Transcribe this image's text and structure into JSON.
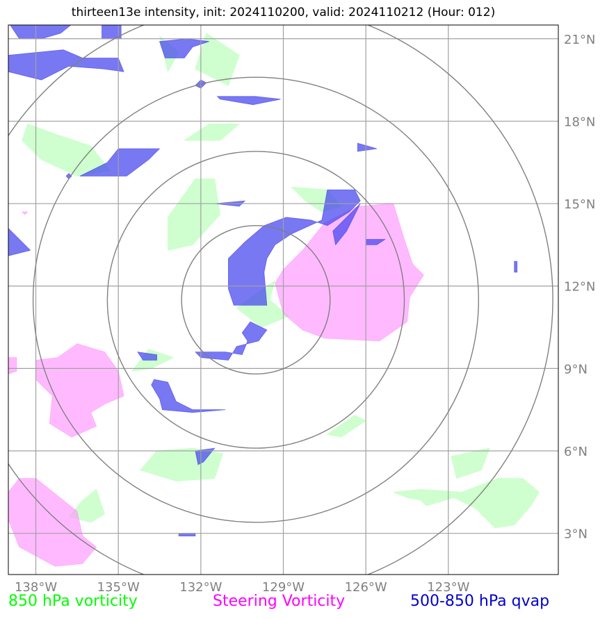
{
  "title": "thirteen13e intensity, init: 2024110200, valid: 2024110212 (Hour: 012)",
  "extent": {
    "lon": [
      -139.0,
      -119.0
    ],
    "lat": [
      1.5,
      21.5
    ]
  },
  "center": {
    "lon": -130.0,
    "lat": 11.5
  },
  "ring_radii_deg": [
    2.7,
    5.4,
    8.1,
    10.8
  ],
  "lon_ticks": [
    -138,
    -135,
    -132,
    -129,
    -126,
    -123
  ],
  "lon_labels": [
    "138°W",
    "135°W",
    "132°W",
    "129°W",
    "126°W",
    "123°W"
  ],
  "lat_ticks": [
    3,
    6,
    9,
    12,
    15,
    18,
    21
  ],
  "lat_labels": [
    "3°N",
    "6°N",
    "9°N",
    "12°N",
    "15°N",
    "18°N",
    "21°N"
  ],
  "legend": [
    {
      "label": "850 hPa vorticity",
      "color": "#00ff00"
    },
    {
      "label": "Steering Vorticity",
      "color": "#ff00ff"
    },
    {
      "label": "500-850 hPa qvap",
      "color": "#0000cc"
    }
  ],
  "colors": {
    "vort850": "#bfffbf",
    "steering": "#ff8cff",
    "qvap": "#4444ee",
    "grid": "#a0a0a0",
    "rings": "#808080"
  },
  "layers": {
    "vort850": [
      [
        [
          -131.8,
          21.2
        ],
        [
          -130.6,
          20.4
        ],
        [
          -131.0,
          19.3
        ],
        [
          -132.2,
          19.9
        ]
      ],
      [
        [
          -133.5,
          21.1
        ],
        [
          -132.8,
          20.5
        ],
        [
          -133.2,
          19.8
        ]
      ],
      [
        [
          -131.7,
          17.9
        ],
        [
          -130.6,
          17.9
        ],
        [
          -131.3,
          17.3
        ],
        [
          -132.6,
          17.3
        ]
      ],
      [
        [
          -138.3,
          17.9
        ],
        [
          -137.2,
          17.5
        ],
        [
          -136.0,
          17.1
        ],
        [
          -135.3,
          16.2
        ],
        [
          -136.5,
          16.0
        ],
        [
          -137.8,
          16.6
        ],
        [
          -138.5,
          17.3
        ]
      ],
      [
        [
          -131.5,
          15.9
        ],
        [
          -131.3,
          14.6
        ],
        [
          -132.3,
          13.5
        ],
        [
          -133.2,
          13.3
        ],
        [
          -133.2,
          14.5
        ],
        [
          -132.2,
          15.9
        ]
      ],
      [
        [
          -128.7,
          15.6
        ],
        [
          -127.4,
          15.5
        ],
        [
          -126.9,
          14.9
        ],
        [
          -127.6,
          14.7
        ],
        [
          -128.2,
          15.1
        ]
      ],
      [
        [
          -129.3,
          12.2
        ],
        [
          -129.5,
          11.5
        ],
        [
          -128.8,
          10.9
        ],
        [
          -129.8,
          10.5
        ],
        [
          -130.7,
          11.2
        ]
      ],
      [
        [
          -133.0,
          9.4
        ],
        [
          -133.8,
          9.0
        ],
        [
          -134.5,
          8.9
        ],
        [
          -133.9,
          9.7
        ]
      ],
      [
        [
          -126.0,
          7.1
        ],
        [
          -126.9,
          6.5
        ],
        [
          -127.4,
          6.6
        ],
        [
          -126.4,
          7.3
        ]
      ],
      [
        [
          -132.3,
          6.1
        ],
        [
          -131.2,
          5.9
        ],
        [
          -131.5,
          5.0
        ],
        [
          -132.9,
          4.9
        ],
        [
          -134.2,
          5.3
        ],
        [
          -133.6,
          6.0
        ]
      ],
      [
        [
          -135.8,
          4.6
        ],
        [
          -135.5,
          3.7
        ],
        [
          -136.0,
          3.4
        ],
        [
          -136.8,
          3.6
        ],
        [
          -136.3,
          4.2
        ]
      ],
      [
        [
          -120.0,
          4.0
        ],
        [
          -120.6,
          3.3
        ],
        [
          -121.3,
          3.2
        ],
        [
          -122.0,
          3.9
        ],
        [
          -122.8,
          4.3
        ],
        [
          -123.8,
          4.0
        ],
        [
          -124.0,
          4.2
        ],
        [
          -124.5,
          4.3
        ],
        [
          -125.0,
          4.5
        ],
        [
          -124.0,
          4.6
        ],
        [
          -122.5,
          4.5
        ],
        [
          -121.2,
          5.0
        ],
        [
          -120.3,
          5.0
        ],
        [
          -119.7,
          4.5
        ]
      ],
      [
        [
          -121.5,
          6.1
        ],
        [
          -121.8,
          5.3
        ],
        [
          -122.7,
          5.0
        ],
        [
          -122.9,
          5.8
        ]
      ]
    ],
    "steering": [
      [
        [
          -125.0,
          15.0
        ],
        [
          -126.3,
          14.9
        ],
        [
          -127.5,
          14.3
        ],
        [
          -128.3,
          13.3
        ],
        [
          -129.0,
          12.6
        ],
        [
          -129.3,
          12.1
        ],
        [
          -129.0,
          11.0
        ],
        [
          -128.3,
          10.4
        ],
        [
          -127.5,
          10.1
        ],
        [
          -125.5,
          10.0
        ],
        [
          -124.5,
          10.7
        ],
        [
          -124.4,
          11.6
        ],
        [
          -123.9,
          12.4
        ],
        [
          -124.3,
          12.8
        ],
        [
          -124.6,
          13.7
        ]
      ],
      [
        [
          -136.5,
          9.9
        ],
        [
          -135.5,
          9.6
        ],
        [
          -135.0,
          8.9
        ],
        [
          -134.8,
          8.0
        ],
        [
          -135.5,
          7.7
        ],
        [
          -136.0,
          7.4
        ],
        [
          -135.8,
          6.9
        ],
        [
          -136.7,
          6.5
        ],
        [
          -137.5,
          7.0
        ],
        [
          -137.4,
          8.0
        ],
        [
          -138.0,
          8.6
        ],
        [
          -138.0,
          9.3
        ],
        [
          -137.2,
          9.4
        ]
      ],
      [
        [
          -138.7,
          9.4
        ],
        [
          -138.7,
          8.9
        ],
        [
          -139.0,
          8.8
        ],
        [
          -139.0,
          9.4
        ]
      ],
      [
        [
          -138.0,
          5.0
        ],
        [
          -137.0,
          4.2
        ],
        [
          -136.5,
          3.8
        ],
        [
          -136.3,
          2.9
        ],
        [
          -135.8,
          2.5
        ],
        [
          -136.3,
          1.9
        ],
        [
          -137.3,
          1.8
        ],
        [
          -138.6,
          2.5
        ],
        [
          -139.0,
          3.5
        ],
        [
          -139.0,
          4.5
        ],
        [
          -138.6,
          5.0
        ]
      ],
      [
        [
          -138.3,
          14.7
        ],
        [
          -138.4,
          14.6
        ],
        [
          -138.5,
          14.7
        ]
      ]
    ],
    "qvap": [
      [
        [
          -139.0,
          21.6
        ],
        [
          -136.6,
          21.6
        ],
        [
          -137.1,
          21.2
        ],
        [
          -137.8,
          21.0
        ],
        [
          -138.6,
          21.0
        ]
      ],
      [
        [
          -135.6,
          21.6
        ],
        [
          -134.9,
          21.6
        ],
        [
          -134.9,
          21.0
        ],
        [
          -135.6,
          21.0
        ]
      ],
      [
        [
          -133.5,
          20.9
        ],
        [
          -132.5,
          21.0
        ],
        [
          -131.7,
          20.9
        ],
        [
          -132.3,
          20.7
        ],
        [
          -132.6,
          20.3
        ],
        [
          -133.3,
          20.3
        ]
      ],
      [
        [
          -139.0,
          20.4
        ],
        [
          -137.0,
          20.6
        ],
        [
          -136.3,
          20.3
        ],
        [
          -135.0,
          20.3
        ],
        [
          -134.8,
          19.8
        ],
        [
          -135.5,
          19.9
        ],
        [
          -136.8,
          20.0
        ],
        [
          -137.8,
          19.5
        ],
        [
          -139.0,
          19.8
        ]
      ],
      [
        [
          -132.0,
          19.5
        ],
        [
          -131.8,
          19.4
        ],
        [
          -132.0,
          19.2
        ],
        [
          -132.2,
          19.3
        ]
      ],
      [
        [
          -131.4,
          18.9
        ],
        [
          -130.0,
          18.9
        ],
        [
          -129.1,
          18.8
        ],
        [
          -130.1,
          18.6
        ],
        [
          -131.3,
          18.8
        ]
      ],
      [
        [
          -135.0,
          17.0
        ],
        [
          -133.5,
          17.0
        ],
        [
          -133.9,
          16.6
        ],
        [
          -134.7,
          16.0
        ],
        [
          -135.6,
          16.0
        ],
        [
          -136.4,
          16.0
        ],
        [
          -135.4,
          16.5
        ]
      ],
      [
        [
          -126.3,
          17.2
        ],
        [
          -125.6,
          17.0
        ],
        [
          -126.3,
          16.9
        ]
      ],
      [
        [
          -131.5,
          15.0
        ],
        [
          -130.4,
          15.1
        ],
        [
          -130.6,
          14.9
        ]
      ],
      [
        [
          -131.0,
          13.0
        ],
        [
          -130.4,
          13.6
        ],
        [
          -129.7,
          14.2
        ],
        [
          -128.9,
          14.5
        ],
        [
          -128.0,
          14.4
        ],
        [
          -127.4,
          14.2
        ],
        [
          -126.6,
          14.7
        ],
        [
          -126.2,
          15.1
        ],
        [
          -126.4,
          15.5
        ],
        [
          -127.4,
          15.5
        ],
        [
          -127.6,
          14.4
        ],
        [
          -128.7,
          13.9
        ],
        [
          -129.3,
          13.5
        ],
        [
          -129.6,
          13.0
        ],
        [
          -129.7,
          12.5
        ],
        [
          -129.6,
          11.3
        ],
        [
          -130.8,
          11.3
        ],
        [
          -131.0,
          11.9
        ]
      ],
      [
        [
          -126.2,
          15.0
        ],
        [
          -126.7,
          14.5
        ],
        [
          -127.2,
          14.0
        ],
        [
          -127.1,
          13.5
        ],
        [
          -126.7,
          14.0
        ]
      ],
      [
        [
          -126.0,
          13.7
        ],
        [
          -125.3,
          13.7
        ],
        [
          -125.6,
          13.5
        ],
        [
          -126.0,
          13.5
        ]
      ],
      [
        [
          -139.0,
          14.1
        ],
        [
          -138.2,
          13.3
        ],
        [
          -139.0,
          13.1
        ]
      ],
      [
        [
          -130.2,
          10.7
        ],
        [
          -129.6,
          10.4
        ],
        [
          -129.9,
          10.0
        ],
        [
          -130.7,
          9.8
        ],
        [
          -131.0,
          9.3
        ],
        [
          -132.0,
          9.4
        ],
        [
          -132.2,
          9.6
        ],
        [
          -131.1,
          9.6
        ],
        [
          -130.5,
          9.5
        ],
        [
          -130.3,
          10.0
        ],
        [
          -130.5,
          10.3
        ]
      ],
      [
        [
          -134.3,
          9.6
        ],
        [
          -133.6,
          9.5
        ],
        [
          -133.6,
          9.3
        ],
        [
          -134.1,
          9.3
        ]
      ],
      [
        [
          -133.7,
          8.6
        ],
        [
          -133.2,
          8.5
        ],
        [
          -132.9,
          7.8
        ],
        [
          -132.3,
          7.5
        ],
        [
          -131.1,
          7.5
        ],
        [
          -132.3,
          7.4
        ],
        [
          -133.4,
          7.5
        ],
        [
          -133.5,
          7.9
        ],
        [
          -133.8,
          8.4
        ]
      ],
      [
        [
          -132.2,
          6.0
        ],
        [
          -131.5,
          6.1
        ],
        [
          -131.9,
          5.6
        ],
        [
          -132.1,
          5.5
        ]
      ],
      [
        [
          -136.8,
          16.1
        ],
        [
          -136.7,
          16.0
        ],
        [
          -136.8,
          15.9
        ],
        [
          -136.9,
          16.0
        ]
      ],
      [
        [
          -120.5,
          12.9
        ],
        [
          -120.5,
          12.5
        ],
        [
          -120.6,
          12.5
        ],
        [
          -120.6,
          12.9
        ]
      ],
      [
        [
          -132.8,
          3.0
        ],
        [
          -132.2,
          3.0
        ],
        [
          -132.2,
          2.9
        ],
        [
          -132.8,
          2.9
        ]
      ]
    ]
  }
}
